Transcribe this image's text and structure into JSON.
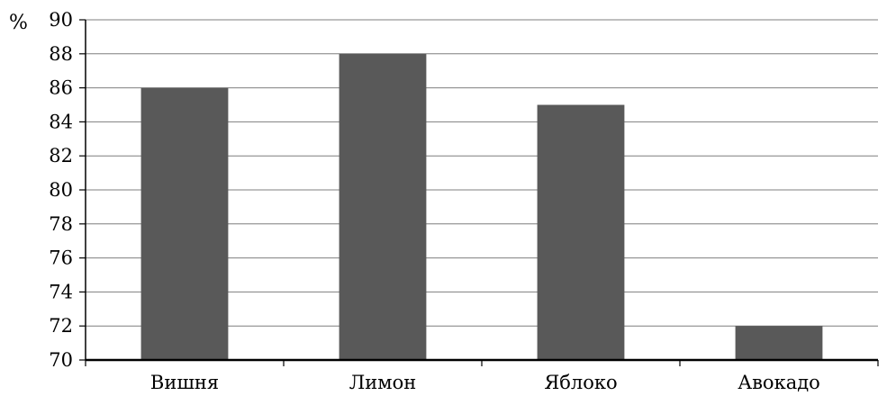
{
  "chart_data": {
    "type": "bar",
    "categories": [
      "Вишня",
      "Лимон",
      "Яблоко",
      "Авокадо"
    ],
    "values": [
      86,
      88,
      85,
      72
    ],
    "ylabel": "%",
    "ylim": [
      70,
      90
    ],
    "yticks": [
      70,
      72,
      74,
      76,
      78,
      80,
      82,
      84,
      86,
      88,
      90
    ],
    "grid": true,
    "legend": "none",
    "colors": {
      "bar": "#595959",
      "grid": "#7f7f7f",
      "axis": "#000000",
      "text": "#000000"
    }
  }
}
